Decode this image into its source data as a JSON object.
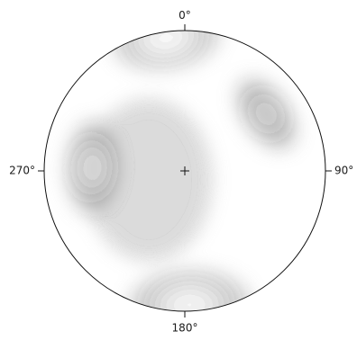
{
  "chart_data": {
    "type": "heatmap",
    "projection": "equal-area lower hemisphere (contoured pole density)",
    "title": "",
    "tick_labels": [
      {
        "azimuth_deg": 0,
        "text": "0°"
      },
      {
        "azimuth_deg": 90,
        "text": "90°"
      },
      {
        "azimuth_deg": 180,
        "text": "180°"
      },
      {
        "azimuth_deg": 270,
        "text": "270°"
      }
    ],
    "center_marker": "+",
    "contour_levels": 12,
    "density_scale": {
      "min": 0,
      "max": 1
    },
    "concentrations": [
      {
        "trend_deg": 352,
        "plunge_deg": 5,
        "relative_density": 1.0,
        "spread_deg": 16
      },
      {
        "trend_deg": 55,
        "plunge_deg": 30,
        "relative_density": 0.45,
        "spread_deg": 12
      },
      {
        "trend_deg": 272,
        "plunge_deg": 35,
        "relative_density": 0.55,
        "spread_deg": 14
      },
      {
        "trend_deg": 178,
        "plunge_deg": 5,
        "relative_density": 0.9,
        "spread_deg": 18
      }
    ],
    "colors": {
      "low": "#ffffff",
      "high": "#0a0a0a",
      "outline": "#111111"
    }
  }
}
